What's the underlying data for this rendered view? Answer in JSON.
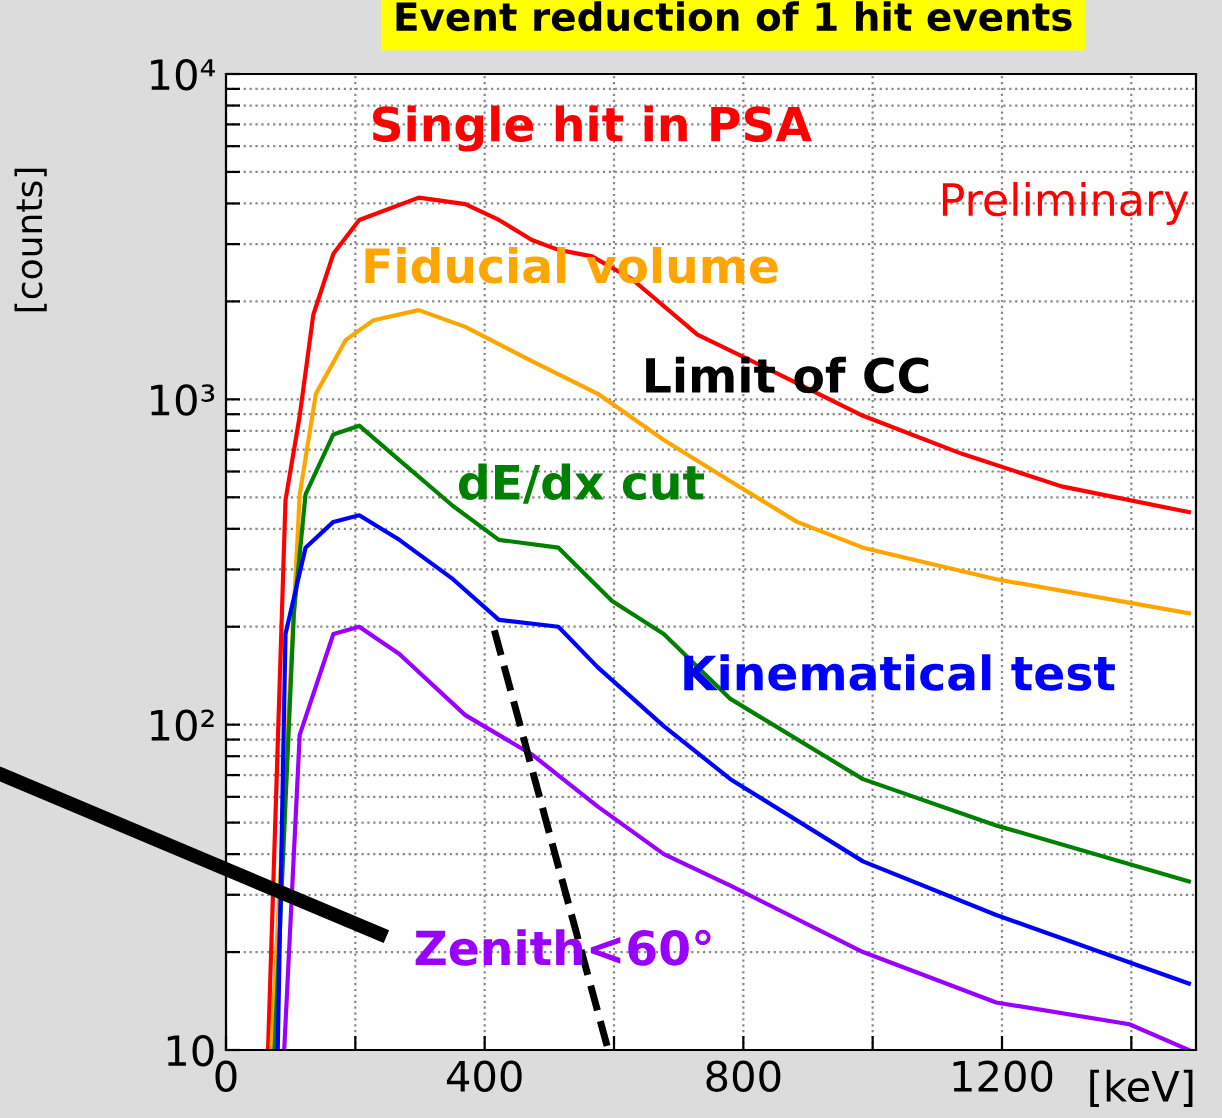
{
  "chart_data": {
    "type": "line",
    "title": "Event reduction of 1 hit events",
    "xlabel": "[keV]",
    "ylabel": "[counts]",
    "xlim": [
      0,
      1500
    ],
    "xticks": [
      0,
      {
        "value": 200,
        "label": null
      },
      400,
      {
        "value": 600,
        "label": null
      },
      800,
      {
        "value": 1000,
        "label": null
      },
      1200,
      {
        "value": 1400,
        "label": null
      }
    ],
    "ylim": [
      10,
      10000
    ],
    "yticks": [
      {
        "value": 10,
        "label": "10"
      },
      {
        "value": 20,
        "label": null
      },
      {
        "value": 30,
        "label": null
      },
      {
        "value": 40,
        "label": null
      },
      {
        "value": 50,
        "label": null
      },
      {
        "value": 60,
        "label": null
      },
      {
        "value": 70,
        "label": null
      },
      {
        "value": 80,
        "label": null
      },
      {
        "value": 90,
        "label": null
      },
      {
        "value": 100,
        "label": "10²"
      },
      {
        "value": 200,
        "label": null
      },
      {
        "value": 300,
        "label": null
      },
      {
        "value": 400,
        "label": null
      },
      {
        "value": 500,
        "label": null
      },
      {
        "value": 600,
        "label": null
      },
      {
        "value": 700,
        "label": null
      },
      {
        "value": 800,
        "label": null
      },
      {
        "value": 900,
        "label": null
      },
      {
        "value": 1000,
        "label": "10³"
      },
      {
        "value": 2000,
        "label": null
      },
      {
        "value": 3000,
        "label": null
      },
      {
        "value": 4000,
        "label": null
      },
      {
        "value": 5000,
        "label": null
      },
      {
        "value": 6000,
        "label": null
      },
      {
        "value": 7000,
        "label": null
      },
      {
        "value": 8000,
        "label": null
      },
      {
        "value": 9000,
        "label": null
      },
      {
        "value": 10000,
        "label": "10⁴"
      }
    ],
    "log": "y",
    "grid": true,
    "legend": false,
    "line_style": "solid",
    "marker": "none",
    "series": [
      {
        "name": "Single hit in PSA",
        "color": "#ff0000",
        "x": [
          65,
          92,
          114,
          135,
          166,
          206,
          298,
          370,
          422,
          473,
          514,
          566,
          628,
          729,
          831,
          985,
          1138,
          1292,
          1489
        ],
        "values": [
          10,
          490,
          890,
          1820,
          2800,
          3560,
          4170,
          3980,
          3560,
          3090,
          2880,
          2750,
          2340,
          1580,
          1260,
          890,
          680,
          540,
          450
        ]
      },
      {
        "name": "Fiducial volume",
        "color": "#ffa500",
        "x": [
          70,
          114,
          139,
          185,
          228,
          298,
          370,
          473,
          575,
          677,
          780,
          883,
          985,
          1191,
          1489
        ],
        "values": [
          10,
          510,
          1040,
          1520,
          1750,
          1880,
          1670,
          1310,
          1040,
          750,
          560,
          420,
          350,
          280,
          220
        ]
      },
      {
        "name": "dE/dx cut",
        "color": "#008000",
        "x": [
          75,
          105,
          123,
          166,
          206,
          268,
          351,
          422,
          514,
          597,
          677,
          780,
          985,
          1191,
          1489
        ],
        "values": [
          10,
          220,
          510,
          780,
          830,
          650,
          470,
          370,
          350,
          240,
          190,
          120,
          68,
          49,
          33
        ]
      },
      {
        "name": "Kinematical test",
        "color": "#0000ff",
        "x": [
          80,
          92,
          123,
          166,
          206,
          268,
          351,
          422,
          514,
          575,
          677,
          780,
          985,
          1191,
          1489
        ],
        "values": [
          10,
          190,
          350,
          420,
          440,
          370,
          280,
          210,
          200,
          150,
          99,
          68,
          38,
          26,
          16
        ]
      },
      {
        "name": "Zenith<60°",
        "color": "#9900ff",
        "x": [
          90,
          114,
          166,
          206,
          268,
          370,
          473,
          575,
          677,
          780,
          985,
          1191,
          1397,
          1489
        ],
        "values": [
          10,
          93,
          190,
          200,
          165,
          107,
          81,
          56,
          40,
          32,
          20,
          14,
          12,
          10
        ]
      },
      {
        "name": "Limit of CC",
        "color": "#000000",
        "line_style": "dashed",
        "x": [
          415,
          591
        ],
        "values": [
          195,
          10
        ]
      }
    ],
    "annotations": [
      "Preliminary"
    ]
  }
}
